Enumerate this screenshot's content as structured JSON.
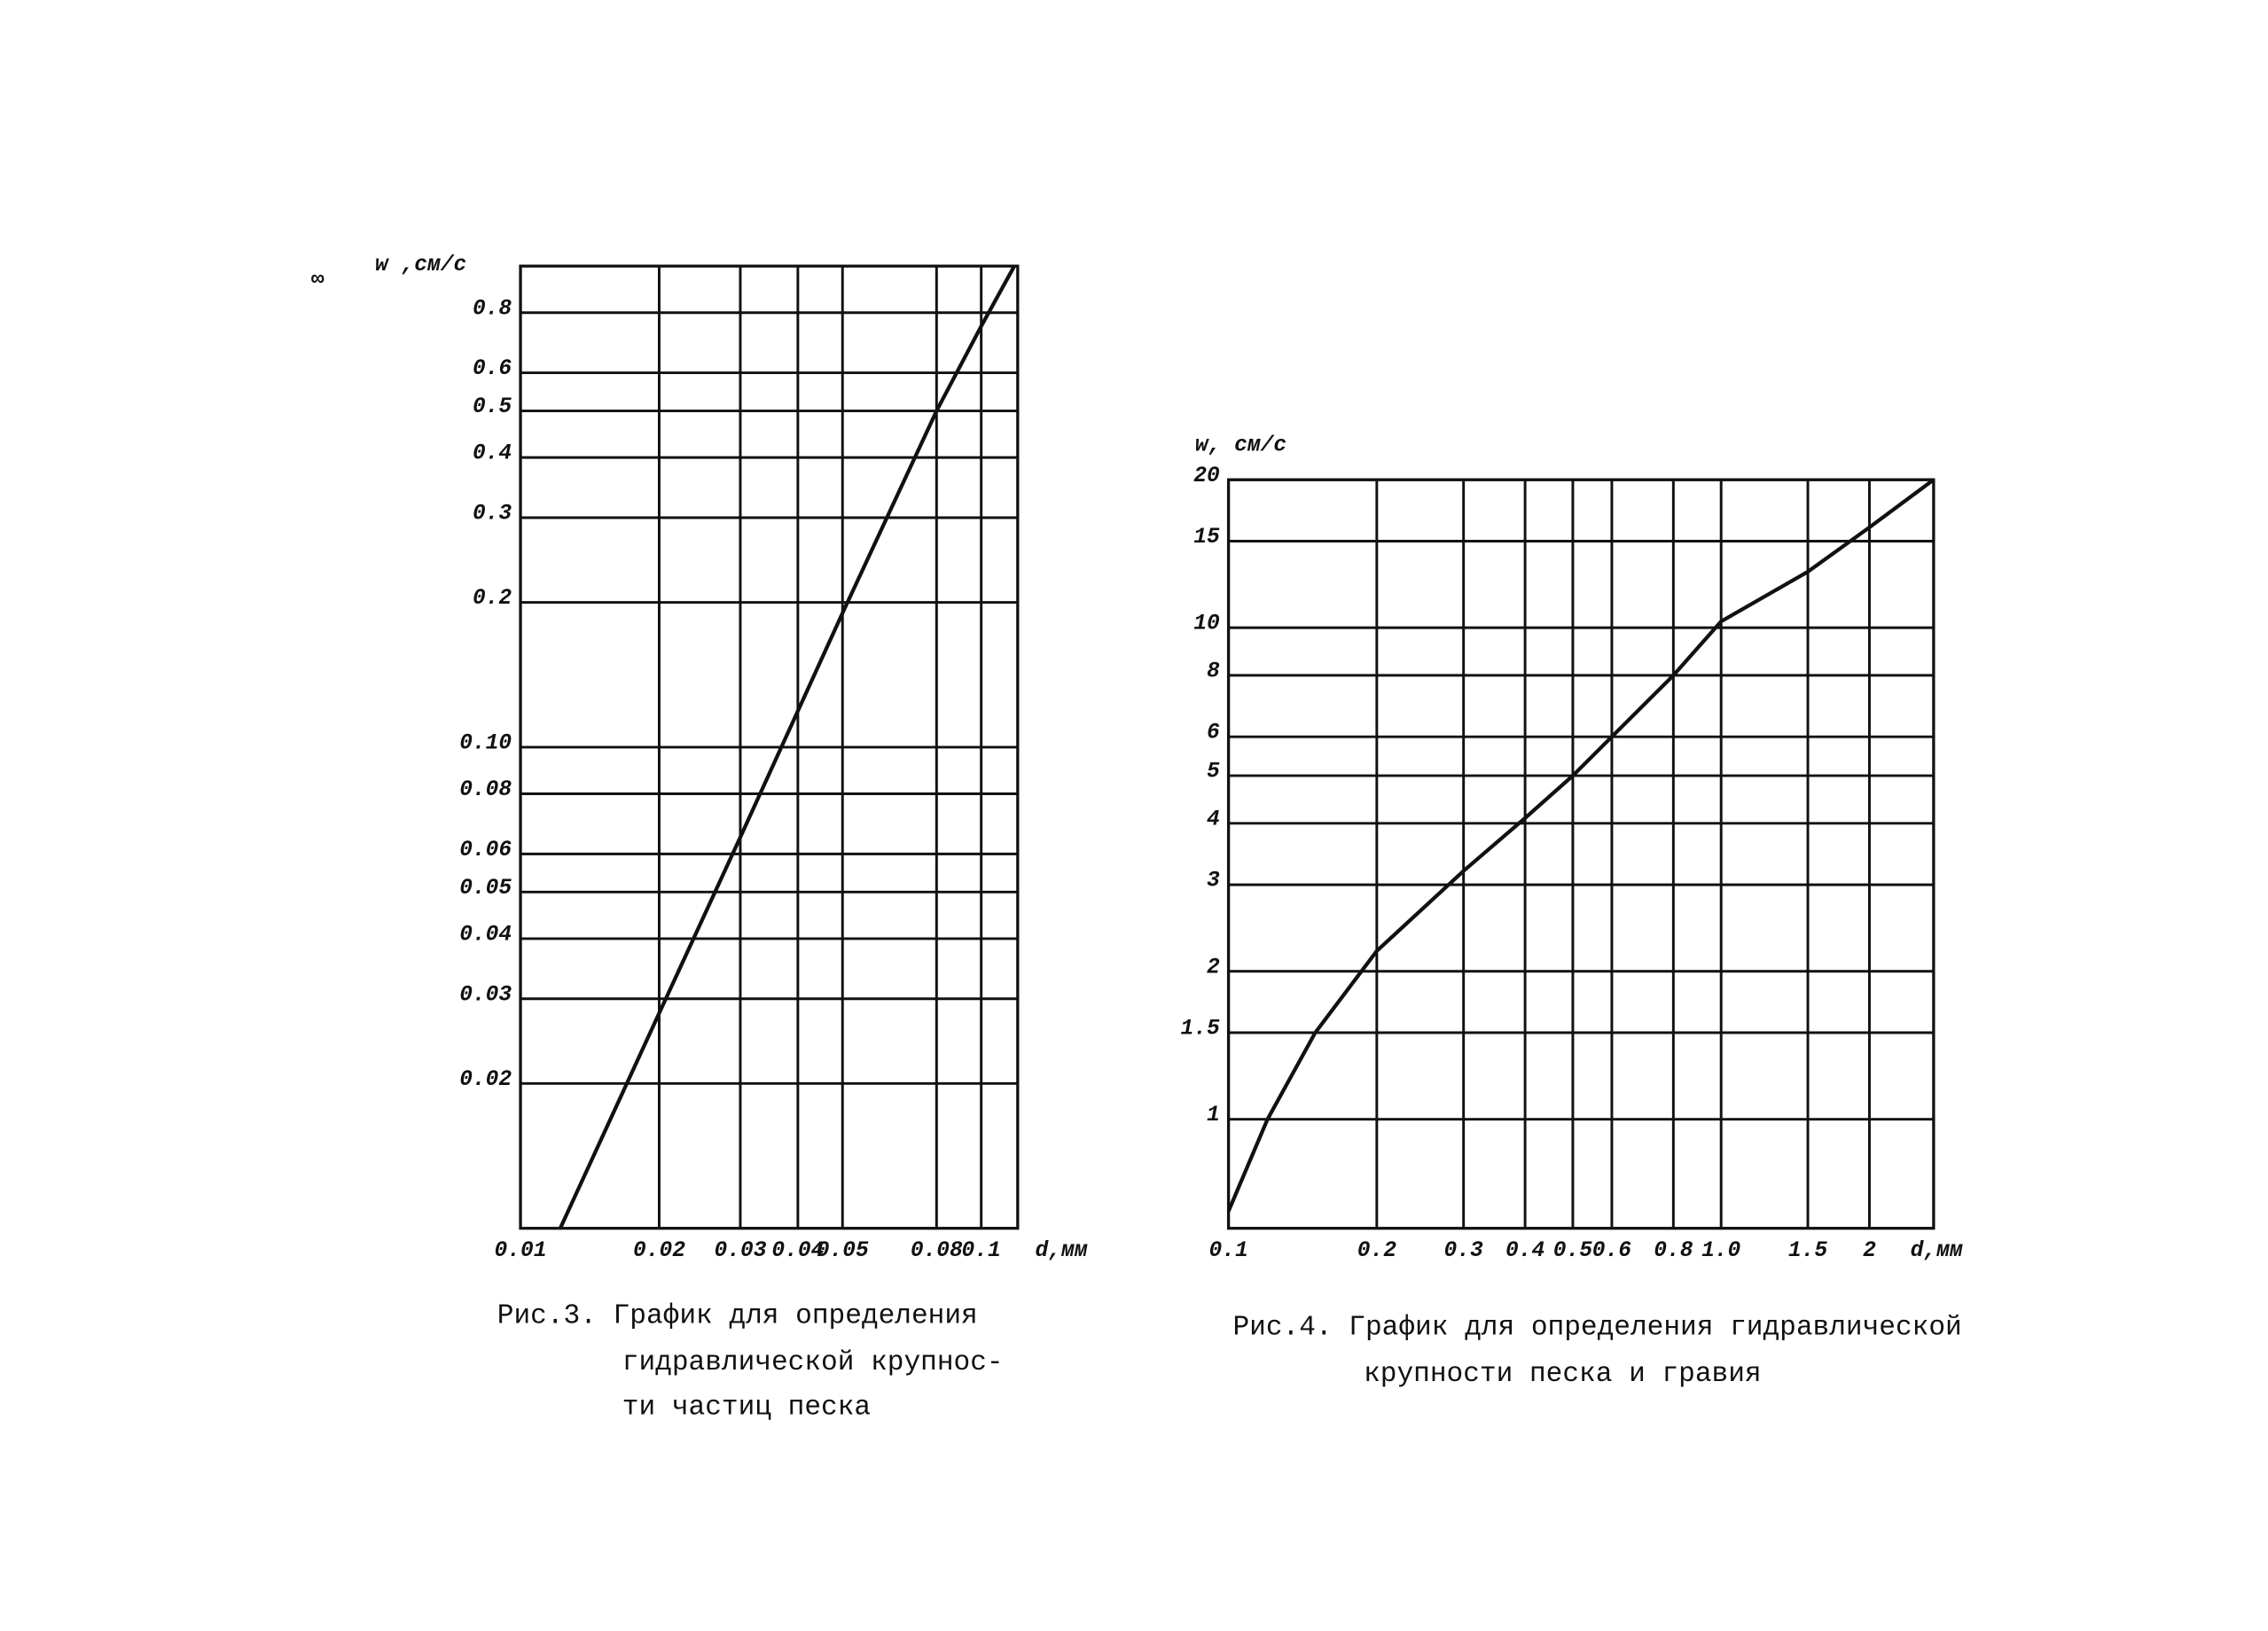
{
  "page_mark": "∞",
  "chart_data": [
    {
      "type": "line",
      "log_x": true,
      "log_y": true,
      "grid": true,
      "color": "#111111",
      "y_label": "w ,см/с",
      "x_label": "d,мм",
      "caption": [
        "Рис.3. График для определения",
        "гидравлической крупнос-",
        "ти частиц песка"
      ],
      "xlim": [
        0.01,
        0.12
      ],
      "ylim": [
        0.01,
        1
      ],
      "xticks": [
        0.01,
        0.02,
        0.03,
        0.04,
        0.05,
        0.08,
        0.1
      ],
      "yticks": [
        0.02,
        0.03,
        0.04,
        0.05,
        0.06,
        0.08,
        {
          "value": 0.1,
          "label": "0.10"
        },
        0.2,
        0.3,
        0.4,
        0.5,
        0.6,
        0.8
      ],
      "x": [
        0.0122,
        0.02,
        0.03,
        0.05,
        0.08,
        0.1,
        0.118
      ],
      "values": [
        0.01,
        0.028,
        0.065,
        0.19,
        0.5,
        0.75,
        1.0
      ]
    },
    {
      "type": "line",
      "log_x": true,
      "log_y": true,
      "grid": true,
      "color": "#111111",
      "y_label": "w, см/с",
      "x_label": "d,мм",
      "caption": [
        "Рис.4. График для определения гидравлической",
        "крупности песка и гравия"
      ],
      "xlim": [
        0.1,
        2.7
      ],
      "ylim": [
        0.6,
        20
      ],
      "xticks": [
        0.1,
        0.2,
        0.3,
        0.4,
        0.5,
        0.6,
        0.8,
        {
          "value": 1,
          "label": "1.0"
        },
        1.5,
        2
      ],
      "yticks": [
        1,
        1.5,
        2,
        3,
        4,
        5,
        6,
        8,
        10,
        15,
        20
      ],
      "x": [
        0.1,
        0.12,
        0.15,
        0.2,
        0.3,
        0.4,
        0.5,
        0.6,
        0.8,
        1.0,
        1.5,
        2,
        2.7
      ],
      "values": [
        0.65,
        1.0,
        1.5,
        2.2,
        3.2,
        4.1,
        5.0,
        6.0,
        8.0,
        10.3,
        13,
        16,
        20
      ]
    }
  ]
}
